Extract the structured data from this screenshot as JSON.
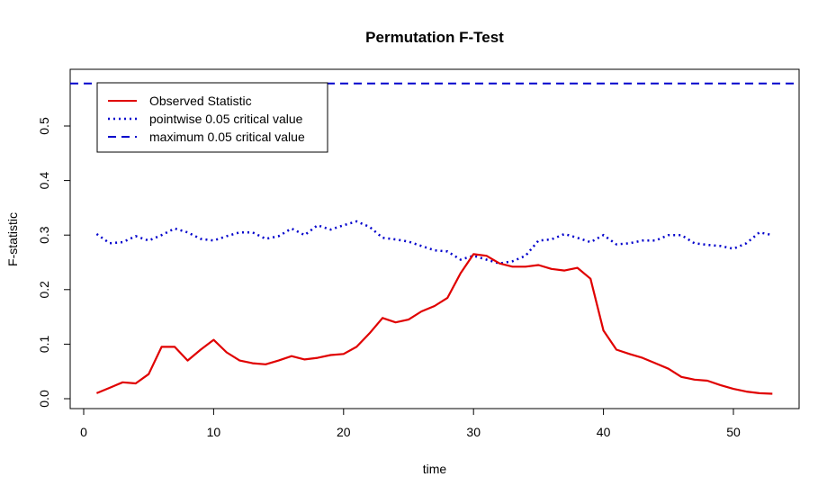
{
  "chart_data": {
    "type": "line",
    "title": "Permutation F-Test",
    "xlabel": "time",
    "ylabel": "F-statistic",
    "xlim": [
      0,
      55
    ],
    "ylim": [
      -0.01,
      0.6
    ],
    "x_ticks": [
      0,
      10,
      20,
      30,
      40,
      50
    ],
    "y_ticks": [
      0.0,
      0.1,
      0.2,
      0.3,
      0.4,
      0.5
    ],
    "x_tick_labels": [
      "0",
      "10",
      "20",
      "30",
      "40",
      "50"
    ],
    "y_tick_labels": [
      "0.0",
      "0.1",
      "0.2",
      "0.3",
      "0.4",
      "0.5"
    ],
    "grid": false,
    "legend_position": "top-left",
    "x": [
      1,
      2,
      3,
      4,
      5,
      6,
      7,
      8,
      9,
      10,
      11,
      12,
      13,
      14,
      15,
      16,
      17,
      18,
      19,
      20,
      21,
      22,
      23,
      24,
      25,
      26,
      27,
      28,
      29,
      30,
      31,
      32,
      33,
      34,
      35,
      36,
      37,
      38,
      39,
      40,
      41,
      42,
      43,
      44,
      45,
      46,
      47,
      48,
      49,
      50,
      51,
      52,
      53
    ],
    "series": [
      {
        "name": "Observed Statistic",
        "color": "#e00000",
        "style": "solid",
        "values": [
          0.01,
          0.02,
          0.03,
          0.028,
          0.045,
          0.095,
          0.095,
          0.07,
          0.09,
          0.108,
          0.085,
          0.07,
          0.065,
          0.063,
          0.07,
          0.078,
          0.072,
          0.075,
          0.08,
          0.082,
          0.095,
          0.12,
          0.148,
          0.14,
          0.145,
          0.16,
          0.17,
          0.185,
          0.23,
          0.265,
          0.262,
          0.248,
          0.242,
          0.242,
          0.245,
          0.238,
          0.235,
          0.24,
          0.22,
          0.125,
          0.09,
          0.082,
          0.075,
          0.065,
          0.055,
          0.04,
          0.035,
          0.033,
          0.025,
          0.018,
          0.013,
          0.01,
          0.009
        ]
      },
      {
        "name": "pointwise 0.05 critical value",
        "color": "#0000cc",
        "style": "dotted",
        "values": [
          0.302,
          0.285,
          0.287,
          0.298,
          0.29,
          0.3,
          0.312,
          0.305,
          0.293,
          0.29,
          0.298,
          0.305,
          0.305,
          0.293,
          0.298,
          0.312,
          0.3,
          0.318,
          0.31,
          0.318,
          0.325,
          0.315,
          0.295,
          0.292,
          0.288,
          0.28,
          0.272,
          0.27,
          0.255,
          0.262,
          0.255,
          0.248,
          0.252,
          0.262,
          0.29,
          0.292,
          0.302,
          0.295,
          0.287,
          0.3,
          0.283,
          0.285,
          0.29,
          0.29,
          0.3,
          0.3,
          0.285,
          0.282,
          0.28,
          0.275,
          0.285,
          0.305,
          0.3
        ]
      },
      {
        "name": "maximum 0.05 critical value",
        "color": "#0000cc",
        "style": "dashed",
        "values_constant": 0.578
      }
    ]
  }
}
